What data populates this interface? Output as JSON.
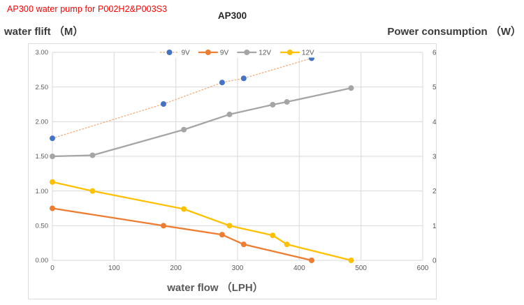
{
  "annotation": {
    "text": "AP300 water pump for P002H2&P003S3",
    "color": "#ff0000"
  },
  "title": "AP300",
  "left_axis": {
    "title": "water flift （M）",
    "ticks": [
      "0.00",
      "0.50",
      "1.00",
      "1.50",
      "2.00",
      "2.50",
      "3.00"
    ],
    "range": [
      0,
      3
    ]
  },
  "right_axis": {
    "title": "Power consumption （W）",
    "ticks": [
      "0",
      "1",
      "2",
      "3",
      "4",
      "5",
      "6"
    ],
    "range": [
      0,
      6
    ]
  },
  "x_axis": {
    "title": "water flow （LPH）",
    "ticks": [
      "0",
      "100",
      "200",
      "300",
      "400",
      "500",
      "600"
    ],
    "range": [
      0,
      600
    ]
  },
  "legend": [
    {
      "label": "9V",
      "marker_color": "#4472C4",
      "line_color": "#F4B183",
      "dotted": true
    },
    {
      "label": "9V",
      "marker_color": "#ED7D31",
      "line_color": "#ED7D31",
      "dotted": false
    },
    {
      "label": "12V",
      "marker_color": "#A5A5A5",
      "line_color": "#A5A5A5",
      "dotted": false
    },
    {
      "label": "12V",
      "marker_color": "#FFC000",
      "line_color": "#FFC000",
      "dotted": false
    }
  ],
  "colors": {
    "gridline": "#D9D9D9",
    "plot_border": "#D9D9D9",
    "frame_border": "#DCDCDC",
    "tick_text": "#595959",
    "axis_title_text": "#3a3a3a",
    "title_text": "#262626"
  },
  "chart_data": {
    "type": "line",
    "title": "AP300",
    "xlabel": "water flow（LPH）",
    "left_axis_label": "water flift（M）",
    "right_axis_label": "Power consumption（W）",
    "x_range": [
      0,
      600
    ],
    "left_range": [
      0,
      3
    ],
    "right_range": [
      0,
      6
    ],
    "grid": true,
    "legend_position": "top-center",
    "series": [
      {
        "name": "9V",
        "measure": "power consumption (W)",
        "axis": "right",
        "marker_color": "#4472C4",
        "line_color": "#F4B183",
        "line_style": "dotted",
        "x": [
          0,
          180,
          275,
          310,
          420
        ],
        "y": [
          3.52,
          4.51,
          5.13,
          5.25,
          5.83
        ]
      },
      {
        "name": "9V",
        "measure": "water lift (M)",
        "axis": "left",
        "marker_color": "#ED7D31",
        "line_color": "#ED7D31",
        "line_style": "solid",
        "x": [
          0,
          180,
          275,
          310,
          420
        ],
        "y": [
          0.75,
          0.5,
          0.37,
          0.23,
          0.0
        ]
      },
      {
        "name": "12V",
        "measure": "power consumption (W)",
        "axis": "right",
        "marker_color": "#A5A5A5",
        "line_color": "#A5A5A5",
        "line_style": "solid",
        "x": [
          0,
          65,
          213,
          287,
          357,
          380,
          484
        ],
        "y": [
          3.0,
          3.03,
          3.77,
          4.21,
          4.49,
          4.57,
          4.97
        ]
      },
      {
        "name": "12V",
        "measure": "water lift (M)",
        "axis": "left",
        "marker_color": "#FFC000",
        "line_color": "#FFC000",
        "line_style": "solid",
        "x": [
          0,
          65,
          213,
          287,
          357,
          380,
          484
        ],
        "y": [
          1.13,
          1.0,
          0.74,
          0.5,
          0.36,
          0.23,
          0.0
        ]
      }
    ]
  }
}
